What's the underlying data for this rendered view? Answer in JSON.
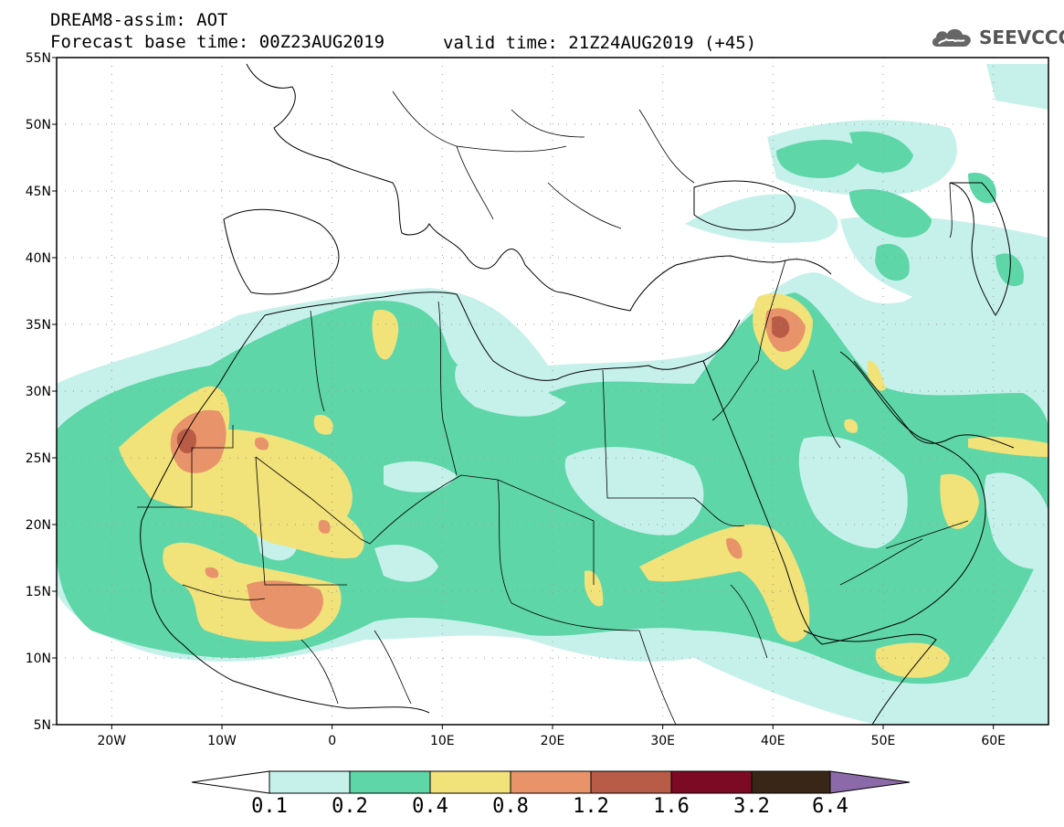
{
  "header": {
    "line1": "DREAM8-assim: AOT",
    "line2_left": "Forecast base time: 00Z23AUG2019",
    "line2_right": "valid time: 21Z24AUG2019 (+45)"
  },
  "logo": {
    "text": "SEEVCCC",
    "icon": "cloud-icon"
  },
  "map": {
    "lat_labels": [
      "55N",
      "50N",
      "45N",
      "40N",
      "35N",
      "30N",
      "25N",
      "20N",
      "15N",
      "10N",
      "5N"
    ],
    "lon_labels": [
      "20W",
      "10W",
      "0",
      "10E",
      "20E",
      "30E",
      "40E",
      "50E",
      "60E"
    ],
    "lon_range": [
      -25,
      65
    ],
    "lat_range": [
      5,
      55
    ],
    "grid": "dotted"
  },
  "colorbar": {
    "labels": [
      "0.1",
      "0.2",
      "0.4",
      "0.8",
      "1.2",
      "1.6",
      "3.2",
      "6.4"
    ],
    "colors": {
      "under": "#ffffff",
      "c1": "#c6f1ea",
      "c2": "#5ed6a8",
      "c3": "#f1e27a",
      "c4": "#e8936a",
      "c5": "#b85c48",
      "c6": "#7d0a25",
      "c7": "#3a2616",
      "over": "#8c6aaa"
    }
  }
}
